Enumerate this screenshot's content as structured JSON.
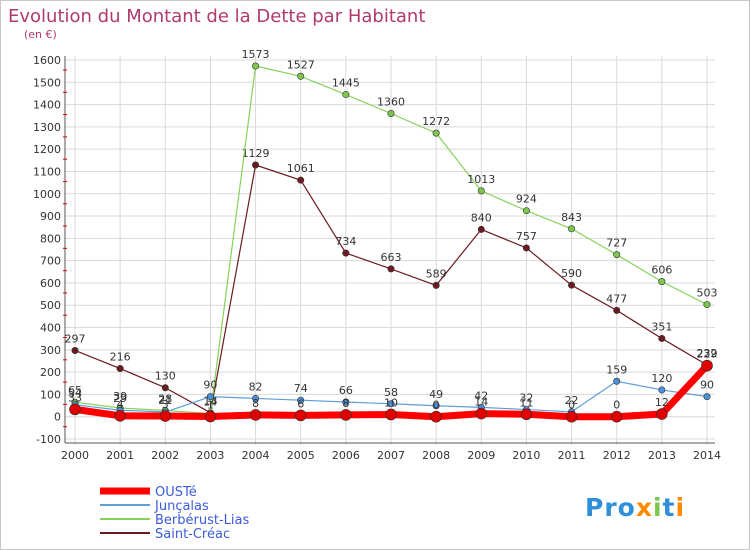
{
  "title": "Evolution du Montant de la Dette par Habitant",
  "subtitle": "(en €)",
  "logo_text": "Prox i ti",
  "colors": {
    "title": "#b03a6e",
    "background": "#ffffff",
    "plot_bg": "#ffffff",
    "grid": "#d9d9d9",
    "legend_text": "#3b5bd8",
    "frame": "#c8c8c8"
  },
  "chart_data": {
    "type": "line",
    "title": "Evolution du Montant de la Dette par Habitant",
    "subtitle": "(en €)",
    "xlabel": "",
    "ylabel": "",
    "x": [
      2000,
      2001,
      2002,
      2003,
      2004,
      2005,
      2006,
      2007,
      2008,
      2009,
      2010,
      2011,
      2012,
      2013,
      2014
    ],
    "ylim": [
      -100,
      1600
    ],
    "yticks": [
      -100,
      0,
      100,
      200,
      300,
      400,
      500,
      600,
      700,
      800,
      900,
      1000,
      1100,
      1200,
      1300,
      1400,
      1500,
      1600
    ],
    "grid": true,
    "legend_position": "bottom-left",
    "series": [
      {
        "name": "Saint-Créac",
        "color": "#6b1a1f",
        "marker": "#6b1a1f",
        "width": 1.2,
        "values": [
          297,
          216,
          130,
          18,
          1129,
          1061,
          734,
          663,
          589,
          840,
          757,
          590,
          477,
          351,
          232
        ],
        "labels": [
          "297",
          "216",
          "130",
          "18",
          "1129",
          "1061",
          "734",
          "663",
          "589",
          "840",
          "757",
          "590",
          "477",
          "351",
          "232"
        ]
      },
      {
        "name": "Berbérust-Lias",
        "color": "#86d35a",
        "marker": "#7cc84d",
        "width": 1.2,
        "values": [
          65,
          39,
          28,
          14,
          1573,
          1527,
          1445,
          1360,
          1272,
          1013,
          924,
          843,
          727,
          606,
          503
        ],
        "labels": [
          "65",
          "39",
          "28",
          "14",
          "1573",
          "1527",
          "1445",
          "1360",
          "1272",
          "1013",
          "924",
          "843",
          "727",
          "606",
          "503"
        ]
      },
      {
        "name": "Junçalas",
        "color": "#5f9fd6",
        "marker": "#4a90d9",
        "width": 1.2,
        "values": [
          54,
          29,
          21,
          90,
          82,
          74,
          66,
          58,
          49,
          42,
          32,
          22,
          159,
          120,
          90
        ],
        "labels": [
          "54",
          "29",
          "21",
          "90",
          "82",
          "74",
          "66",
          "58",
          "49",
          "42",
          "32",
          "22",
          "159",
          "120",
          "90"
        ]
      },
      {
        "name": "OUSTé",
        "color": "#ff0000",
        "marker": "#e00000",
        "width": 7,
        "values": [
          33,
          4,
          3,
          1,
          8,
          6,
          8,
          10,
          0,
          14,
          11,
          0,
          0,
          12,
          229
        ],
        "labels": [
          "33",
          "4",
          "3",
          "1",
          "8",
          "6",
          "8",
          "10",
          "0",
          "14",
          "11",
          "0",
          "0",
          "12",
          "229"
        ]
      }
    ],
    "legend_order": [
      "OUSTé",
      "Junçalas",
      "Berbérust-Lias",
      "Saint-Créac"
    ]
  }
}
